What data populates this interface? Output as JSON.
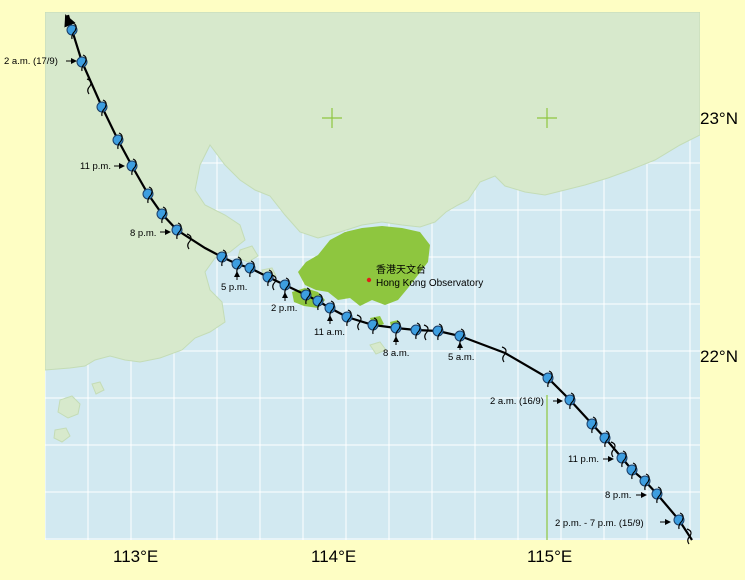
{
  "map": {
    "latitude_labels": [
      "23°N",
      "22°N"
    ],
    "longitude_labels": [
      "113°E",
      "114°E",
      "115°E"
    ],
    "observatory": {
      "name_zh": "香港天文台",
      "name_en": "Hong Kong Observatory"
    },
    "time_labels": [
      "2 a.m. (17/9)",
      "11 p.m.",
      "8 p.m.",
      "5 p.m.",
      "2 p.m.",
      "11 a.m.",
      "8 a.m.",
      "5 a.m.",
      "2 a.m. (16/9)",
      "11 p.m.",
      "8 p.m.",
      "2 p.m. - 7 p.m. (15/9)"
    ],
    "colors": {
      "sea": "#d2e9f1",
      "land": "#d7e9cc",
      "hong_kong": "#8ec63f",
      "grid": "#ffffff",
      "track_marker": "#3d9ee0",
      "frame": "#fefec4"
    }
  }
}
